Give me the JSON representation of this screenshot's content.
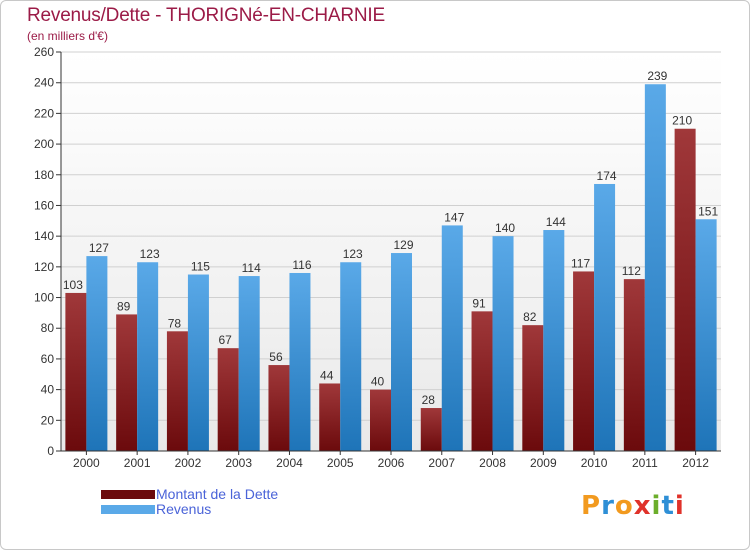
{
  "chart_data": {
    "type": "bar",
    "title": "Revenus/Dette - THORIGNé-EN-CHARNIE",
    "subtitle": "(en milliers d'€)",
    "xlabel": "",
    "ylabel": "",
    "ylim": [
      0,
      260
    ],
    "yticks": [
      0,
      20,
      40,
      60,
      80,
      100,
      120,
      140,
      160,
      180,
      200,
      220,
      240,
      260
    ],
    "grid": true,
    "categories": [
      "2000",
      "2001",
      "2002",
      "2003",
      "2004",
      "2005",
      "2006",
      "2007",
      "2008",
      "2009",
      "2010",
      "2011",
      "2012"
    ],
    "series": [
      {
        "name": "Montant de la Dette",
        "color": "#6b0a0c",
        "color_light": "#a0383a",
        "values": [
          103,
          89,
          78,
          67,
          56,
          44,
          40,
          28,
          91,
          82,
          117,
          112,
          210
        ]
      },
      {
        "name": "Revenus",
        "color": "#1e74b8",
        "color_light": "#5aa9e8",
        "values": [
          127,
          123,
          115,
          114,
          116,
          123,
          129,
          147,
          140,
          144,
          174,
          239,
          151
        ]
      }
    ],
    "legend_position": "bottom-left"
  },
  "brand": {
    "letters": [
      "P",
      "r",
      "o",
      "x",
      "i",
      "t",
      "i"
    ],
    "colors": [
      "#f29a1f",
      "#2e8fd6",
      "#f29a1f",
      "#e0322a",
      "#6cae2b",
      "#2e8fd6",
      "#e0322a"
    ]
  }
}
